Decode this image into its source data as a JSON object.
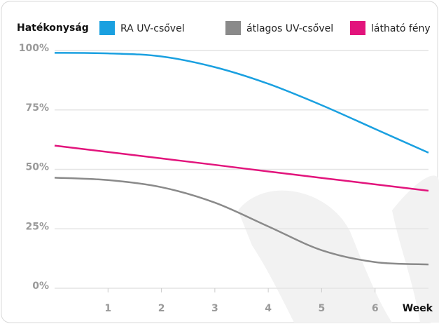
{
  "chart_data": {
    "type": "line",
    "y_label": "Hatékonyság",
    "x_label": "Week",
    "x": [
      0,
      1,
      2,
      3,
      4,
      5,
      6,
      7
    ],
    "series": [
      {
        "name": "RA UV-csővel",
        "color": "#1aa0e0",
        "values": [
          99,
          98.8,
          97.5,
          93,
          86,
          77,
          67,
          57
        ]
      },
      {
        "name": "átlagos UV-csővel",
        "color": "#8a8a8a",
        "values": [
          46.5,
          45.5,
          42.5,
          36,
          26,
          16,
          11,
          10
        ]
      },
      {
        "name": "látható fény",
        "color": "#e2147c",
        "values": [
          60,
          57.3,
          54.6,
          51.9,
          49.1,
          46.4,
          43.7,
          41
        ]
      }
    ],
    "xlim": [
      0,
      7
    ],
    "xticks": [
      1,
      2,
      3,
      4,
      5,
      6
    ],
    "ylim": [
      0,
      100
    ],
    "yticks": [
      {
        "value": 0,
        "label": "0%"
      },
      {
        "value": 25,
        "label": "25%"
      },
      {
        "value": 50,
        "label": "50%"
      },
      {
        "value": 75,
        "label": "75%"
      },
      {
        "value": 100,
        "label": "100%"
      }
    ],
    "grid": true
  }
}
